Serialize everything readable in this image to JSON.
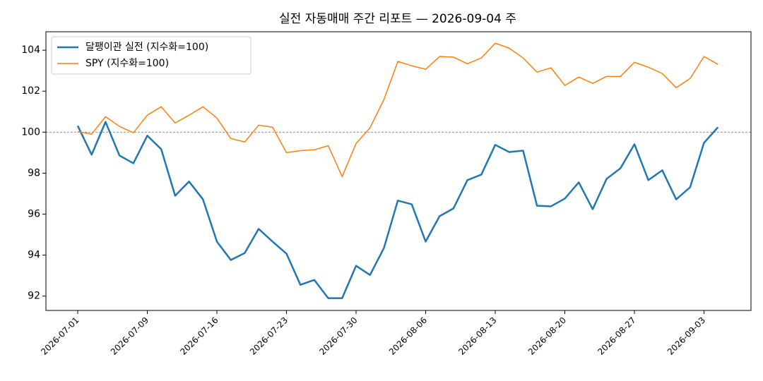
{
  "chart_data": {
    "type": "line",
    "title": "실전 자동매매 주간 리포트 — 2026-09-04 주",
    "categories": [
      "2026-07-01",
      null,
      null,
      null,
      null,
      "2026-07-09",
      null,
      null,
      null,
      null,
      "2026-07-16",
      null,
      null,
      null,
      null,
      "2026-07-23",
      null,
      null,
      null,
      null,
      "2026-07-30",
      null,
      null,
      null,
      null,
      "2026-08-06",
      null,
      null,
      null,
      null,
      "2026-08-13",
      null,
      null,
      null,
      null,
      "2026-08-20",
      null,
      null,
      null,
      null,
      "2026-08-27",
      null,
      null,
      null,
      null,
      "2026-09-03",
      null
    ],
    "series": [
      {
        "name": "달팽이관 실전 (지수화=100)",
        "color": "#1f77b4",
        "width": 2.5,
        "values": [
          100.31,
          98.9,
          100.5,
          98.86,
          98.48,
          99.83,
          99.17,
          96.9,
          97.59,
          96.72,
          94.66,
          93.76,
          94.1,
          95.28,
          94.66,
          94.07,
          92.55,
          92.79,
          91.9,
          91.9,
          93.48,
          93.03,
          94.34,
          96.66,
          96.48,
          94.66,
          95.9,
          96.28,
          97.66,
          97.93,
          99.38,
          99.03,
          99.1,
          96.41,
          96.38,
          96.76,
          97.55,
          96.24,
          97.72,
          98.24,
          99.41,
          97.66,
          98.14,
          96.72,
          97.31,
          99.48,
          100.24
        ]
      },
      {
        "name": "SPY (지수화=100)",
        "color": "#ff7f0e",
        "width": 1.5,
        "values": [
          100.03,
          99.9,
          100.76,
          100.28,
          99.97,
          100.83,
          101.24,
          100.45,
          100.83,
          101.24,
          100.69,
          99.69,
          99.52,
          100.34,
          100.24,
          99.0,
          99.1,
          99.14,
          99.34,
          97.83,
          99.45,
          100.21,
          101.59,
          103.45,
          103.24,
          103.07,
          103.69,
          103.66,
          103.34,
          103.62,
          104.34,
          104.1,
          103.62,
          102.93,
          103.14,
          102.28,
          102.69,
          102.38,
          102.72,
          102.72,
          103.41,
          103.17,
          102.86,
          102.17,
          102.62,
          103.69,
          103.31
        ]
      }
    ],
    "ylim": [
      91.3,
      104.9
    ],
    "yticks": [
      92,
      94,
      96,
      98,
      100,
      102,
      104
    ],
    "reference_line": 100,
    "grid": false,
    "legend": "upper left"
  }
}
